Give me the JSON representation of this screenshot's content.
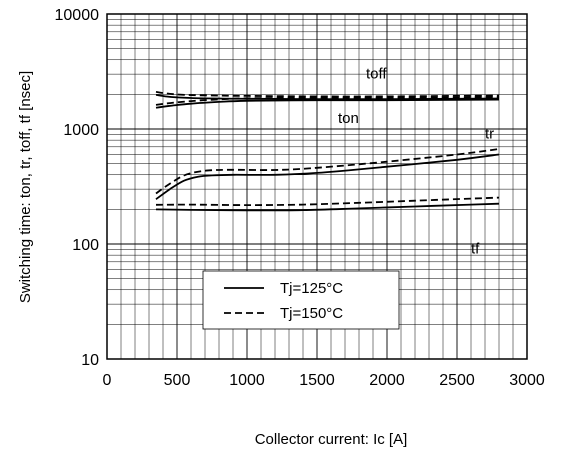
{
  "chart_data": {
    "type": "line",
    "xlabel": "Collector current: Ic [A]",
    "ylabel": "Switching time: ton, tr, toff, tf [nsec]",
    "xlim": [
      0,
      3000
    ],
    "ylim": [
      10,
      10000
    ],
    "yscale": "log",
    "x_ticks": [
      "0",
      "500",
      "1000",
      "1500",
      "2000",
      "2500",
      "3000"
    ],
    "y_ticks": [
      "10",
      "100",
      "1000",
      "10000"
    ],
    "grid": true,
    "legend": {
      "position": "bottom-center",
      "entries": [
        {
          "label": "Tj=125°C",
          "style": "solid"
        },
        {
          "label": "Tj=150°C",
          "style": "dashed"
        }
      ]
    },
    "curve_labels": [
      {
        "text": "toff",
        "x": 1850,
        "y": 2750
      },
      {
        "text": "ton",
        "x": 1650,
        "y": 1130
      },
      {
        "text": "tr",
        "x": 2700,
        "y": 830
      },
      {
        "text": "tf",
        "x": 2600,
        "y": 83
      }
    ],
    "series": [
      {
        "curve": "toff",
        "tj": "125",
        "style": "solid",
        "x": [
          350,
          450,
          600,
          800,
          1000,
          1500,
          2000,
          2500,
          2800
        ],
        "y": [
          1980,
          1900,
          1860,
          1840,
          1830,
          1820,
          1820,
          1830,
          1840
        ]
      },
      {
        "curve": "toff",
        "tj": "150",
        "style": "dashed",
        "x": [
          350,
          450,
          600,
          800,
          1000,
          1500,
          2000,
          2500,
          2800
        ],
        "y": [
          2100,
          2020,
          1970,
          1950,
          1940,
          1920,
          1920,
          1940,
          1950
        ]
      },
      {
        "curve": "ton",
        "tj": "125",
        "style": "solid",
        "x": [
          350,
          450,
          600,
          800,
          1000,
          1500,
          2000,
          2500,
          2800
        ],
        "y": [
          1530,
          1590,
          1660,
          1720,
          1760,
          1780,
          1780,
          1790,
          1800
        ]
      },
      {
        "curve": "ton",
        "tj": "150",
        "style": "dashed",
        "x": [
          350,
          450,
          600,
          800,
          1000,
          1500,
          2000,
          2500,
          2800
        ],
        "y": [
          1620,
          1680,
          1750,
          1810,
          1850,
          1870,
          1870,
          1880,
          1890
        ]
      },
      {
        "curve": "tr",
        "tj": "125",
        "style": "solid",
        "x": [
          350,
          450,
          550,
          650,
          750,
          900,
          1200,
          1500,
          2000,
          2500,
          2800
        ],
        "y": [
          245,
          300,
          355,
          385,
          395,
          400,
          400,
          415,
          470,
          540,
          600
        ]
      },
      {
        "curve": "tr",
        "tj": "150",
        "style": "dashed",
        "x": [
          350,
          450,
          550,
          650,
          750,
          900,
          1200,
          1500,
          2000,
          2500,
          2800
        ],
        "y": [
          275,
          335,
          395,
          425,
          438,
          442,
          440,
          460,
          520,
          600,
          670
        ]
      },
      {
        "curve": "tf",
        "tj": "125",
        "style": "solid",
        "x": [
          350,
          600,
          1000,
          1400,
          1800,
          2200,
          2600,
          2800
        ],
        "y": [
          200,
          198,
          196,
          197,
          204,
          212,
          220,
          224
        ]
      },
      {
        "curve": "tf",
        "tj": "150",
        "style": "dashed",
        "x": [
          350,
          600,
          1000,
          1400,
          1800,
          2200,
          2600,
          2800
        ],
        "y": [
          219,
          220,
          218,
          220,
          228,
          238,
          248,
          253
        ]
      }
    ]
  }
}
